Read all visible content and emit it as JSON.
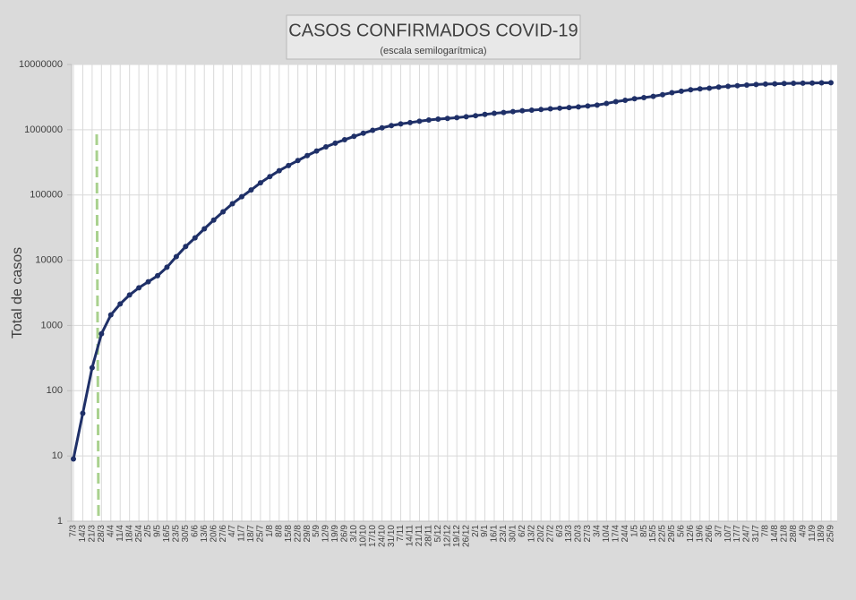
{
  "chart_data": {
    "type": "line",
    "title": "CASOS CONFIRMADOS COVID-19",
    "subtitle": "(escala semilogarítmica)",
    "y_label": "Total de casos",
    "log_y": true,
    "grid": true,
    "categories": [
      "7/3",
      "14/3",
      "21/3",
      "28/3",
      "4/4",
      "11/4",
      "18/4",
      "25/4",
      "2/5",
      "9/5",
      "16/5",
      "23/5",
      "30/5",
      "6/6",
      "13/6",
      "20/6",
      "27/6",
      "4/7",
      "11/7",
      "18/7",
      "25/7",
      "1/8",
      "8/8",
      "15/8",
      "22/8",
      "29/8",
      "5/9",
      "12/9",
      "19/9",
      "26/9",
      "3/10",
      "10/10",
      "17/10",
      "24/10",
      "31/10",
      "7/11",
      "14/11",
      "21/11",
      "28/11",
      "5/12",
      "12/12",
      "19/12",
      "26/12",
      "2/1",
      "9/1",
      "16/1",
      "23/1",
      "30/1",
      "6/2",
      "13/2",
      "20/2",
      "27/2",
      "6/3",
      "13/3",
      "20/3",
      "27/3",
      "3/4",
      "10/4",
      "17/4",
      "24/4",
      "1/5",
      "8/5",
      "15/5",
      "22/5",
      "29/5",
      "5/6",
      "12/6",
      "19/6",
      "26/6",
      "3/7",
      "10/7",
      "17/7",
      "24/7",
      "31/7",
      "7/8",
      "14/8",
      "21/8",
      "28/8",
      "4/9",
      "11/9",
      "18/9",
      "25/9"
    ],
    "series": [
      {
        "name": "Total de casos",
        "color": "#1f3068",
        "values": [
          9,
          45,
          225,
          745,
          1450,
          2140,
          2930,
          3780,
          4680,
          5780,
          7800,
          11350,
          16200,
          22000,
          30300,
          41200,
          55300,
          73500,
          94000,
          119300,
          153500,
          191300,
          235600,
          282400,
          336800,
          401200,
          471800,
          546500,
          622900,
          702400,
          790800,
          883900,
          979100,
          1069400,
          1157000,
          1228800,
          1284500,
          1349400,
          1407300,
          1454600,
          1489300,
          1531400,
          1583300,
          1640700,
          1714400,
          1783000,
          1836100,
          1896000,
          1952700,
          1996400,
          2039100,
          2093600,
          2138000,
          2181000,
          2241000,
          2307000,
          2382000,
          2524000,
          2694000,
          2824000,
          2980000,
          3108000,
          3244000,
          3447000,
          3702000,
          3895000,
          4093000,
          4222000,
          4326000,
          4500000,
          4620000,
          4730000,
          4840000,
          4930000,
          5000000,
          5050000,
          5100000,
          5140000,
          5170000,
          5200000,
          5230000,
          5250000
        ]
      }
    ],
    "ylim": [
      1,
      10000000
    ],
    "yticks": [
      1,
      10,
      100,
      1000,
      10000,
      100000,
      1000000,
      10000000
    ]
  }
}
